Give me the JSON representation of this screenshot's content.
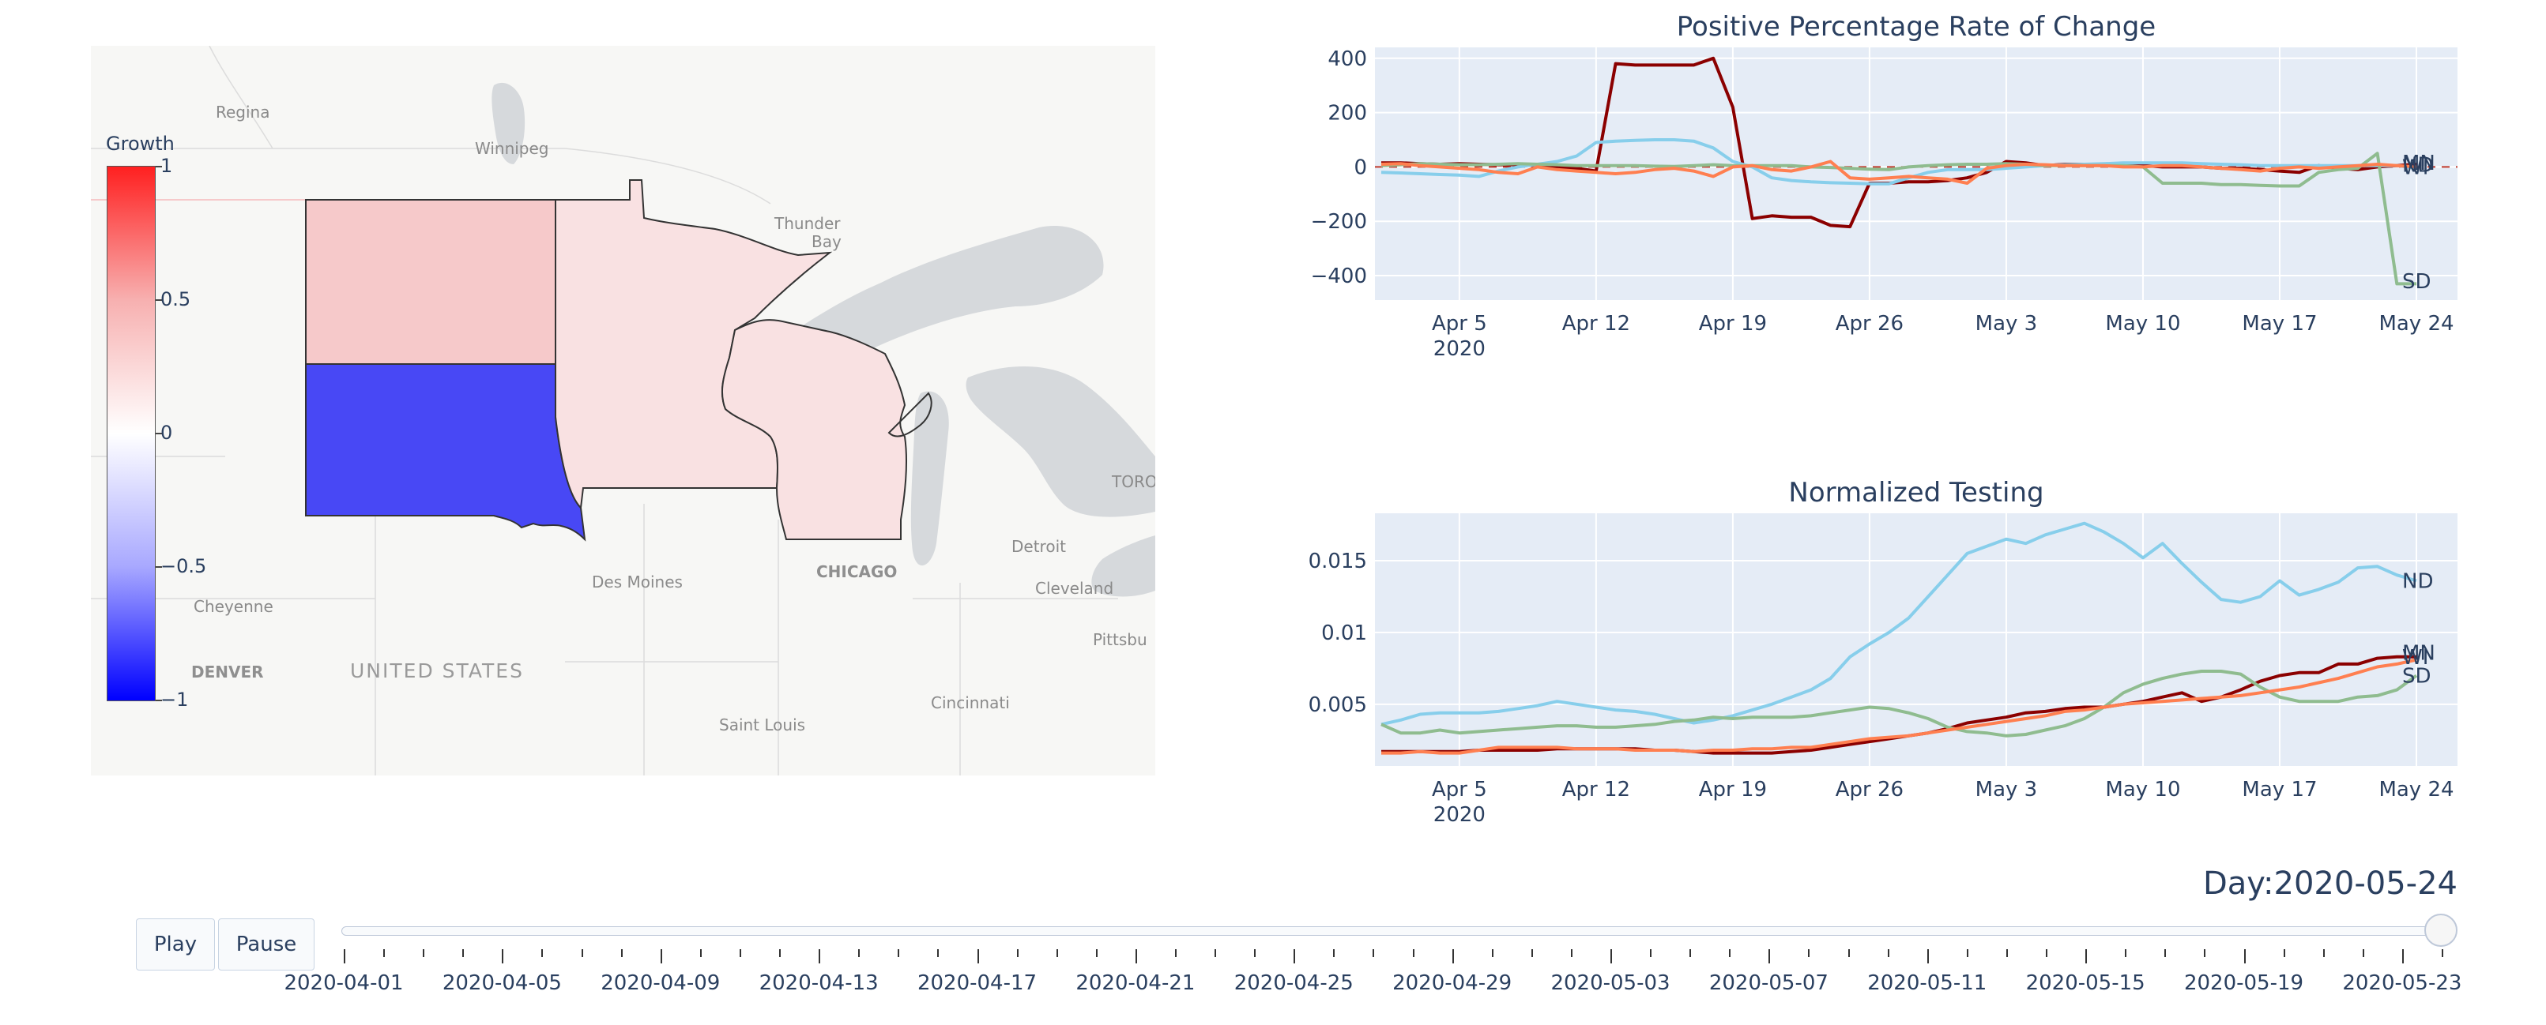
{
  "map": {
    "colorbar_title": "Growth",
    "colorbar_ticks": [
      "1",
      "0.5",
      "0",
      "−0.5",
      "−1"
    ],
    "labels": [
      "Regina",
      "Winnipeg",
      "Thunder",
      "Bay",
      "TORO",
      "Detroit",
      "CHICAGO",
      "Cleveland",
      "Des Moines",
      "Cheyenne",
      "DENVER",
      "UNITED STATES",
      "Pittsbu",
      "Saint Louis",
      "Cincinnati"
    ],
    "info_icon": "i",
    "states": [
      {
        "name": "ND",
        "growth": 0.25,
        "color": "#f6c9ca"
      },
      {
        "name": "MN",
        "growth": 0.12,
        "color": "#f9e1e2"
      },
      {
        "name": "WI",
        "growth": 0.12,
        "color": "#f9e1e2"
      },
      {
        "name": "SD",
        "growth": -0.75,
        "color": "#4848f5"
      }
    ]
  },
  "controls": {
    "play_label": "Play",
    "pause_label": "Pause",
    "day_label": "Day:2020-05-24",
    "slider_labels": [
      "2020-04-01",
      "2020-04-05",
      "2020-04-09",
      "2020-04-13",
      "2020-04-17",
      "2020-04-21",
      "2020-04-25",
      "2020-04-29",
      "2020-05-03",
      "2020-05-07",
      "2020-05-11",
      "2020-05-15",
      "2020-05-19",
      "2020-05-23"
    ],
    "slider_value": "2020-05-24"
  },
  "chart_data": [
    {
      "type": "line",
      "title": "Positive Percentage Rate of Change",
      "x_ticks": [
        "Apr 5",
        "Apr 12",
        "Apr 19",
        "Apr 26",
        "May 3",
        "May 10",
        "May 17",
        "May 24"
      ],
      "x_year": "2020",
      "y_ticks": [
        "400",
        "200",
        "0",
        "−200",
        "−400"
      ],
      "ylim": [
        -490,
        440
      ],
      "x_start": "2020-04-01",
      "x_end": "2020-05-24",
      "end_labels": [
        "MN",
        "ND",
        "WI",
        "SD"
      ],
      "series": [
        {
          "color": "#8b0000",
          "values": [
            15,
            15,
            12,
            10,
            12,
            10,
            8,
            8,
            5,
            0,
            -5,
            -15,
            380,
            375,
            375,
            375,
            375,
            400,
            220,
            -190,
            -180,
            -185,
            -185,
            -215,
            -220,
            -60,
            -60,
            -55,
            -55,
            -50,
            -40,
            -20,
            20,
            15,
            5,
            10,
            10,
            10,
            10,
            5,
            0,
            0,
            0,
            -5,
            -5,
            -10,
            -15,
            -20,
            5,
            -5,
            -10,
            0,
            5,
            10
          ]
        },
        {
          "color": "#87ceeb",
          "values": [
            -20,
            -22,
            -25,
            -28,
            -30,
            -35,
            -15,
            0,
            10,
            20,
            40,
            90,
            95,
            98,
            100,
            100,
            95,
            70,
            20,
            0,
            -40,
            -50,
            -55,
            -58,
            -60,
            -62,
            -62,
            -40,
            -20,
            -10,
            -10,
            -10,
            -5,
            0,
            5,
            8,
            10,
            12,
            15,
            15,
            15,
            15,
            12,
            10,
            8,
            5,
            5,
            5,
            5,
            5,
            5,
            5,
            5,
            -5
          ]
        },
        {
          "color": "#8fbc8f",
          "values": [
            5,
            8,
            12,
            10,
            8,
            8,
            10,
            12,
            10,
            8,
            5,
            5,
            5,
            5,
            3,
            2,
            5,
            8,
            5,
            5,
            5,
            5,
            0,
            -2,
            -5,
            -8,
            -10,
            0,
            5,
            8,
            10,
            10,
            12,
            10,
            5,
            5,
            5,
            5,
            5,
            0,
            -60,
            -60,
            -60,
            -65,
            -65,
            -68,
            -70,
            -70,
            -20,
            -10,
            -5,
            50,
            -430,
            -430
          ]
        },
        {
          "color": "#ff7f50",
          "values": [
            10,
            12,
            5,
            0,
            -5,
            -10,
            -20,
            -25,
            0,
            -10,
            -15,
            -20,
            -25,
            -20,
            -10,
            -5,
            -15,
            -35,
            0,
            5,
            -10,
            -15,
            0,
            20,
            -40,
            -45,
            -40,
            -35,
            -40,
            -45,
            -60,
            -5,
            5,
            10,
            8,
            5,
            5,
            5,
            0,
            0,
            5,
            5,
            0,
            -5,
            -10,
            -15,
            -5,
            0,
            -5,
            0,
            5,
            10,
            5,
            0
          ]
        }
      ]
    },
    {
      "type": "line",
      "title": "Normalized Testing",
      "x_ticks": [
        "Apr 5",
        "Apr 12",
        "Apr 19",
        "Apr 26",
        "May 3",
        "May 10",
        "May 17",
        "May 24"
      ],
      "x_year": "2020",
      "y_ticks": [
        "0.015",
        "0.01",
        "0.005"
      ],
      "ylim": [
        0.0007,
        0.0183
      ],
      "x_start": "2020-04-01",
      "x_end": "2020-05-24",
      "end_labels": [
        "ND",
        "MN",
        "WI",
        "SD"
      ],
      "series": [
        {
          "color": "#87ceeb",
          "values": [
            0.0036,
            0.0039,
            0.0043,
            0.0044,
            0.0044,
            0.0044,
            0.0045,
            0.0047,
            0.0049,
            0.0052,
            0.005,
            0.0048,
            0.0046,
            0.0045,
            0.0043,
            0.004,
            0.0037,
            0.0039,
            0.0042,
            0.0046,
            0.005,
            0.0055,
            0.006,
            0.0068,
            0.0083,
            0.0092,
            0.01,
            0.011,
            0.0125,
            0.014,
            0.0155,
            0.016,
            0.0165,
            0.0162,
            0.0168,
            0.0172,
            0.0176,
            0.017,
            0.0162,
            0.0152,
            0.0162,
            0.0148,
            0.0135,
            0.0123,
            0.0121,
            0.0125,
            0.0136,
            0.0126,
            0.013,
            0.0135,
            0.0145,
            0.0146,
            0.014,
            0.0136
          ]
        },
        {
          "color": "#8b0000",
          "values": [
            0.0017,
            0.0017,
            0.0017,
            0.0017,
            0.0017,
            0.0018,
            0.0018,
            0.0018,
            0.0018,
            0.0019,
            0.0019,
            0.0019,
            0.0019,
            0.0019,
            0.0018,
            0.0018,
            0.0017,
            0.0016,
            0.0016,
            0.0016,
            0.0016,
            0.0017,
            0.0018,
            0.002,
            0.0022,
            0.0024,
            0.0026,
            0.0028,
            0.003,
            0.0033,
            0.0037,
            0.0039,
            0.0041,
            0.0044,
            0.0045,
            0.0047,
            0.0048,
            0.0048,
            0.005,
            0.0052,
            0.0055,
            0.0058,
            0.0052,
            0.0055,
            0.006,
            0.0066,
            0.007,
            0.0072,
            0.0072,
            0.0078,
            0.0078,
            0.0082,
            0.0083,
            0.0083
          ]
        },
        {
          "color": "#8fbc8f",
          "values": [
            0.0036,
            0.003,
            0.003,
            0.0032,
            0.003,
            0.0031,
            0.0032,
            0.0033,
            0.0034,
            0.0035,
            0.0035,
            0.0034,
            0.0034,
            0.0035,
            0.0036,
            0.0038,
            0.0039,
            0.0041,
            0.004,
            0.0041,
            0.0041,
            0.0041,
            0.0042,
            0.0044,
            0.0046,
            0.0048,
            0.0047,
            0.0044,
            0.004,
            0.0034,
            0.0031,
            0.003,
            0.0028,
            0.0029,
            0.0032,
            0.0035,
            0.004,
            0.0048,
            0.0058,
            0.0064,
            0.0068,
            0.0071,
            0.0073,
            0.0073,
            0.0071,
            0.0062,
            0.0055,
            0.0052,
            0.0052,
            0.0052,
            0.0055,
            0.0056,
            0.006,
            0.007
          ]
        },
        {
          "color": "#ff7f50",
          "values": [
            0.0016,
            0.0016,
            0.0017,
            0.0016,
            0.0016,
            0.0018,
            0.002,
            0.002,
            0.002,
            0.002,
            0.0019,
            0.0019,
            0.0019,
            0.0018,
            0.0018,
            0.0018,
            0.0017,
            0.0018,
            0.0018,
            0.0019,
            0.0019,
            0.002,
            0.002,
            0.0022,
            0.0024,
            0.0026,
            0.0027,
            0.0028,
            0.003,
            0.0032,
            0.0034,
            0.0036,
            0.0038,
            0.004,
            0.0042,
            0.0045,
            0.0046,
            0.0048,
            0.005,
            0.0051,
            0.0052,
            0.0053,
            0.0054,
            0.0055,
            0.0056,
            0.0058,
            0.006,
            0.0062,
            0.0065,
            0.0068,
            0.0072,
            0.0076,
            0.0078,
            0.0081
          ]
        }
      ]
    }
  ]
}
